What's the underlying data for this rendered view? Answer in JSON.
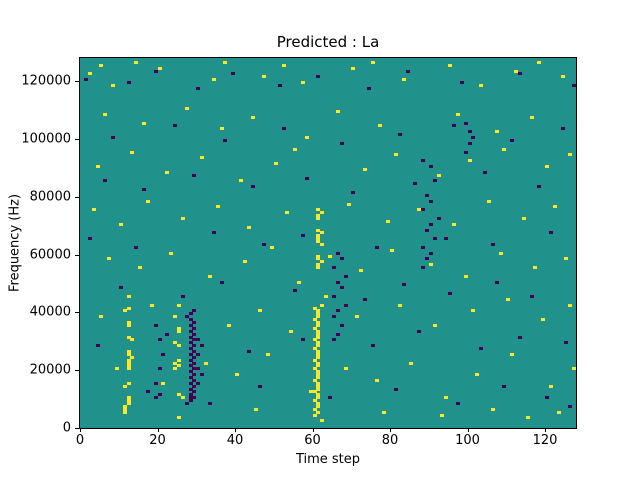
{
  "chart_data": {
    "type": "heatmap",
    "title": "Predicted : La",
    "xlabel": "Time step",
    "ylabel": "Frequency (Hz)",
    "x_range": [
      0,
      128
    ],
    "y_range": [
      0,
      128000
    ],
    "x_ticks": [
      0,
      20,
      40,
      60,
      80,
      100,
      120
    ],
    "y_ticks": [
      0,
      20000,
      40000,
      60000,
      80000,
      100000,
      120000
    ],
    "grid": false,
    "legend": "none",
    "colormap": "viridis",
    "cell_grid": [
      128,
      128
    ],
    "y_cell_unit_hz": 1000,
    "colors": {
      "background_mid": "#21918c",
      "high": "#fde725",
      "low": "#440154"
    },
    "cells_high": [
      [
        11,
        6
      ],
      [
        11,
        7
      ],
      [
        12,
        8
      ],
      [
        12,
        9
      ],
      [
        12,
        10
      ],
      [
        11,
        14
      ],
      [
        12,
        15
      ],
      [
        12,
        20
      ],
      [
        12,
        21
      ],
      [
        12,
        22
      ],
      [
        12,
        23
      ],
      [
        13,
        24
      ],
      [
        12,
        25
      ],
      [
        12,
        26
      ],
      [
        13,
        30
      ],
      [
        12,
        31
      ],
      [
        12,
        35
      ],
      [
        12,
        36
      ],
      [
        11,
        40
      ],
      [
        12,
        41
      ],
      [
        12,
        45
      ],
      [
        60,
        4
      ],
      [
        61,
        5
      ],
      [
        60,
        6
      ],
      [
        61,
        7
      ],
      [
        61,
        8
      ],
      [
        60,
        9
      ],
      [
        61,
        10
      ],
      [
        61,
        11
      ],
      [
        60,
        12
      ],
      [
        61,
        13
      ],
      [
        61,
        14
      ],
      [
        61,
        15
      ],
      [
        60,
        16
      ],
      [
        61,
        17
      ],
      [
        61,
        18
      ],
      [
        61,
        19
      ],
      [
        60,
        20
      ],
      [
        61,
        21
      ],
      [
        61,
        22
      ],
      [
        60,
        23
      ],
      [
        61,
        24
      ],
      [
        61,
        25
      ],
      [
        61,
        26
      ],
      [
        60,
        27
      ],
      [
        61,
        28
      ],
      [
        61,
        29
      ],
      [
        60,
        30
      ],
      [
        61,
        31
      ],
      [
        61,
        32
      ],
      [
        61,
        33
      ],
      [
        60,
        34
      ],
      [
        61,
        35
      ],
      [
        61,
        36
      ],
      [
        60,
        37
      ],
      [
        61,
        38
      ],
      [
        61,
        39
      ],
      [
        61,
        40
      ],
      [
        60,
        41
      ],
      [
        62,
        42
      ],
      [
        61,
        55
      ],
      [
        61,
        56
      ],
      [
        62,
        57
      ],
      [
        61,
        58
      ],
      [
        61,
        59
      ],
      [
        62,
        63
      ],
      [
        61,
        64
      ],
      [
        61,
        65
      ],
      [
        61,
        66
      ],
      [
        62,
        67
      ],
      [
        61,
        68
      ],
      [
        61,
        72
      ],
      [
        61,
        73
      ],
      [
        62,
        74
      ],
      [
        61,
        75
      ],
      [
        24,
        20
      ],
      [
        25,
        21
      ],
      [
        24,
        22
      ],
      [
        25,
        23
      ],
      [
        25,
        28
      ],
      [
        24,
        29
      ],
      [
        25,
        33
      ],
      [
        25,
        34
      ],
      [
        24,
        38
      ],
      [
        25,
        42
      ],
      [
        26,
        10
      ],
      [
        25,
        11
      ],
      [
        2,
        122
      ],
      [
        5,
        125
      ],
      [
        8,
        118
      ],
      [
        14,
        126
      ],
      [
        20,
        124
      ],
      [
        34,
        120
      ],
      [
        37,
        126
      ],
      [
        47,
        121
      ],
      [
        52,
        125
      ],
      [
        57,
        119
      ],
      [
        70,
        124
      ],
      [
        75,
        126
      ],
      [
        83,
        120
      ],
      [
        95,
        125
      ],
      [
        103,
        118
      ],
      [
        112,
        123
      ],
      [
        118,
        126
      ],
      [
        124,
        121
      ],
      [
        6,
        108
      ],
      [
        16,
        105
      ],
      [
        27,
        110
      ],
      [
        36,
        103
      ],
      [
        44,
        107
      ],
      [
        58,
        100
      ],
      [
        66,
        109
      ],
      [
        77,
        104
      ],
      [
        97,
        108
      ],
      [
        107,
        102
      ],
      [
        116,
        107
      ],
      [
        4,
        90
      ],
      [
        13,
        95
      ],
      [
        22,
        88
      ],
      [
        31,
        93
      ],
      [
        41,
        85
      ],
      [
        50,
        91
      ],
      [
        55,
        96
      ],
      [
        73,
        89
      ],
      [
        81,
        94
      ],
      [
        92,
        87
      ],
      [
        100,
        92
      ],
      [
        109,
        96
      ],
      [
        120,
        90
      ],
      [
        126,
        94
      ],
      [
        3,
        75
      ],
      [
        10,
        70
      ],
      [
        17,
        78
      ],
      [
        26,
        72
      ],
      [
        35,
        76
      ],
      [
        43,
        69
      ],
      [
        53,
        74
      ],
      [
        69,
        77
      ],
      [
        79,
        71
      ],
      [
        87,
        75
      ],
      [
        96,
        70
      ],
      [
        105,
        78
      ],
      [
        114,
        72
      ],
      [
        122,
        76
      ],
      [
        7,
        58
      ],
      [
        15,
        55
      ],
      [
        23,
        60
      ],
      [
        33,
        52
      ],
      [
        42,
        57
      ],
      [
        49,
        62
      ],
      [
        56,
        50
      ],
      [
        64,
        59
      ],
      [
        72,
        54
      ],
      [
        80,
        61
      ],
      [
        90,
        56
      ],
      [
        99,
        52
      ],
      [
        108,
        60
      ],
      [
        117,
        55
      ],
      [
        125,
        58
      ],
      [
        5,
        38
      ],
      [
        18,
        42
      ],
      [
        38,
        35
      ],
      [
        46,
        40
      ],
      [
        54,
        33
      ],
      [
        63,
        45
      ],
      [
        71,
        38
      ],
      [
        82,
        42
      ],
      [
        91,
        35
      ],
      [
        101,
        40
      ],
      [
        110,
        44
      ],
      [
        119,
        37
      ],
      [
        126,
        42
      ],
      [
        9,
        20
      ],
      [
        21,
        15
      ],
      [
        32,
        22
      ],
      [
        40,
        18
      ],
      [
        48,
        25
      ],
      [
        59,
        12
      ],
      [
        68,
        20
      ],
      [
        76,
        16
      ],
      [
        85,
        22
      ],
      [
        94,
        10
      ],
      [
        102,
        18
      ],
      [
        111,
        25
      ],
      [
        121,
        14
      ],
      [
        127,
        20
      ],
      [
        11,
        5
      ],
      [
        25,
        3
      ],
      [
        45,
        6
      ],
      [
        62,
        2
      ],
      [
        78,
        5
      ],
      [
        93,
        4
      ],
      [
        106,
        6
      ],
      [
        115,
        3
      ],
      [
        123,
        5
      ]
    ],
    "cells_low": [
      [
        27,
        8
      ],
      [
        28,
        9
      ],
      [
        28,
        10
      ],
      [
        29,
        10
      ],
      [
        28,
        11
      ],
      [
        29,
        12
      ],
      [
        28,
        13
      ],
      [
        29,
        14
      ],
      [
        28,
        15
      ],
      [
        29,
        16
      ],
      [
        28,
        17
      ],
      [
        29,
        18
      ],
      [
        28,
        19
      ],
      [
        29,
        20
      ],
      [
        28,
        21
      ],
      [
        29,
        22
      ],
      [
        28,
        23
      ],
      [
        29,
        24
      ],
      [
        28,
        25
      ],
      [
        29,
        26
      ],
      [
        28,
        27
      ],
      [
        29,
        28
      ],
      [
        28,
        29
      ],
      [
        29,
        30
      ],
      [
        28,
        31
      ],
      [
        29,
        32
      ],
      [
        28,
        33
      ],
      [
        29,
        34
      ],
      [
        28,
        35
      ],
      [
        29,
        36
      ],
      [
        28,
        37
      ],
      [
        27,
        38
      ],
      [
        28,
        39
      ],
      [
        29,
        40
      ],
      [
        30,
        15
      ],
      [
        30,
        20
      ],
      [
        30,
        25
      ],
      [
        30,
        30
      ],
      [
        31,
        18
      ],
      [
        31,
        28
      ],
      [
        19,
        10
      ],
      [
        20,
        11
      ],
      [
        19,
        15
      ],
      [
        20,
        20
      ],
      [
        21,
        25
      ],
      [
        20,
        30
      ],
      [
        19,
        35
      ],
      [
        65,
        30
      ],
      [
        66,
        32
      ],
      [
        67,
        35
      ],
      [
        65,
        38
      ],
      [
        66,
        40
      ],
      [
        68,
        42
      ],
      [
        65,
        45
      ],
      [
        67,
        48
      ],
      [
        66,
        50
      ],
      [
        68,
        52
      ],
      [
        65,
        55
      ],
      [
        67,
        58
      ],
      [
        66,
        60
      ],
      [
        88,
        55
      ],
      [
        89,
        58
      ],
      [
        90,
        60
      ],
      [
        88,
        62
      ],
      [
        91,
        65
      ],
      [
        89,
        68
      ],
      [
        90,
        70
      ],
      [
        92,
        72
      ],
      [
        88,
        75
      ],
      [
        90,
        78
      ],
      [
        89,
        80
      ],
      [
        91,
        85
      ],
      [
        90,
        90
      ],
      [
        88,
        92
      ],
      [
        99,
        95
      ],
      [
        100,
        98
      ],
      [
        101,
        100
      ],
      [
        100,
        102
      ],
      [
        99,
        105
      ],
      [
        1,
        120
      ],
      [
        12,
        119
      ],
      [
        19,
        123
      ],
      [
        30,
        117
      ],
      [
        39,
        122
      ],
      [
        51,
        118
      ],
      [
        61,
        121
      ],
      [
        74,
        117
      ],
      [
        84,
        123
      ],
      [
        98,
        119
      ],
      [
        113,
        122
      ],
      [
        127,
        118
      ],
      [
        8,
        100
      ],
      [
        24,
        104
      ],
      [
        37,
        99
      ],
      [
        52,
        103
      ],
      [
        67,
        98
      ],
      [
        82,
        101
      ],
      [
        96,
        104
      ],
      [
        111,
        99
      ],
      [
        124,
        103
      ],
      [
        6,
        85
      ],
      [
        16,
        82
      ],
      [
        29,
        87
      ],
      [
        44,
        83
      ],
      [
        58,
        86
      ],
      [
        70,
        81
      ],
      [
        86,
        84
      ],
      [
        104,
        88
      ],
      [
        118,
        83
      ],
      [
        2,
        65
      ],
      [
        14,
        62
      ],
      [
        34,
        67
      ],
      [
        47,
        63
      ],
      [
        57,
        66
      ],
      [
        76,
        62
      ],
      [
        94,
        65
      ],
      [
        106,
        63
      ],
      [
        121,
        67
      ],
      [
        10,
        48
      ],
      [
        26,
        45
      ],
      [
        36,
        50
      ],
      [
        55,
        47
      ],
      [
        73,
        44
      ],
      [
        83,
        49
      ],
      [
        95,
        46
      ],
      [
        107,
        50
      ],
      [
        116,
        45
      ],
      [
        4,
        28
      ],
      [
        22,
        32
      ],
      [
        43,
        26
      ],
      [
        57,
        30
      ],
      [
        75,
        28
      ],
      [
        87,
        33
      ],
      [
        103,
        27
      ],
      [
        113,
        31
      ],
      [
        125,
        29
      ],
      [
        17,
        12
      ],
      [
        33,
        8
      ],
      [
        46,
        14
      ],
      [
        64,
        10
      ],
      [
        81,
        13
      ],
      [
        97,
        8
      ],
      [
        109,
        14
      ],
      [
        120,
        10
      ],
      [
        126,
        7
      ]
    ]
  }
}
